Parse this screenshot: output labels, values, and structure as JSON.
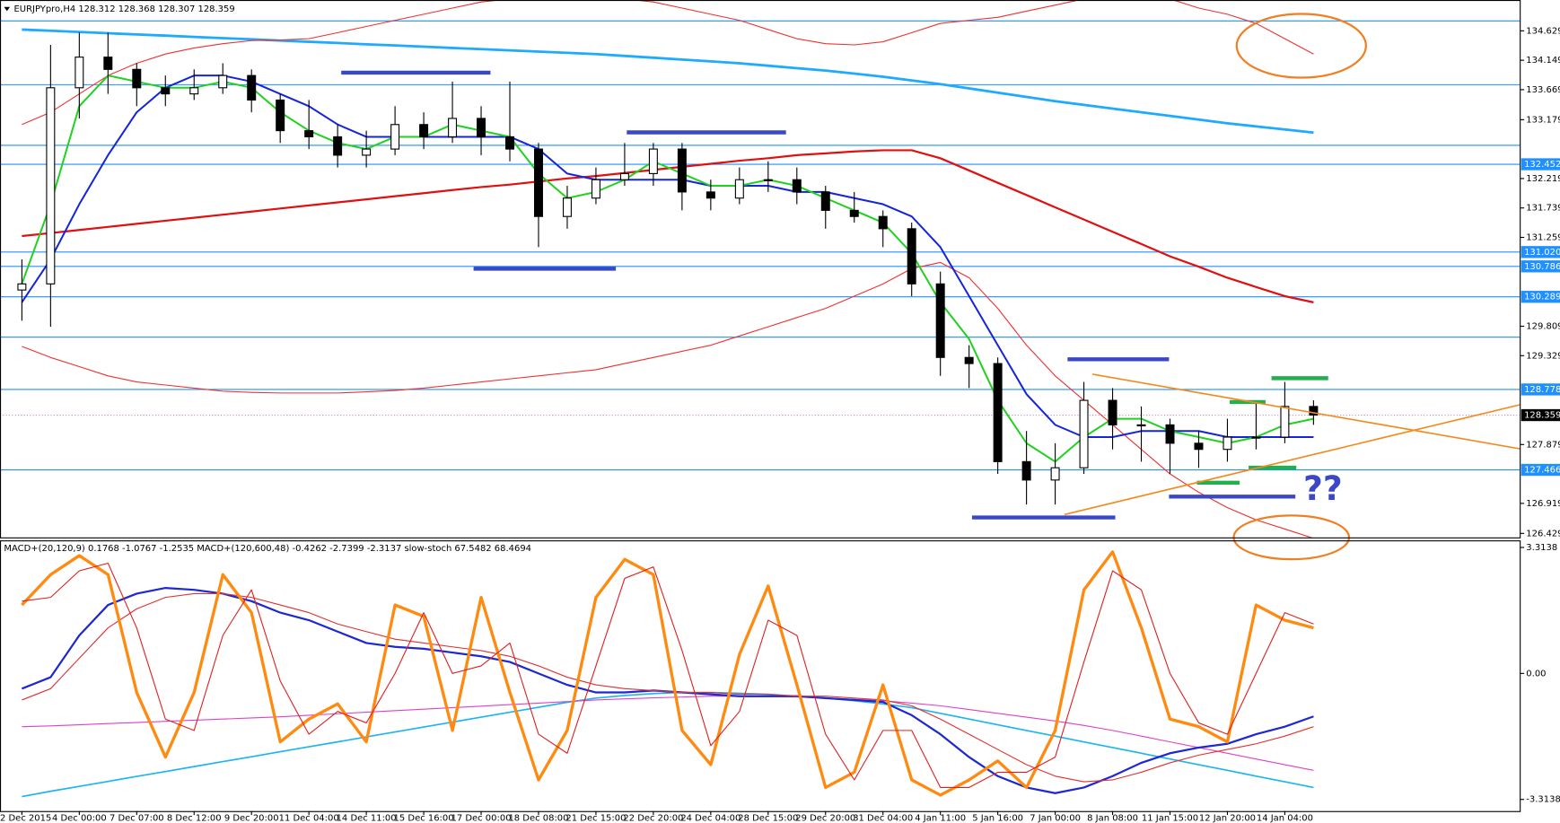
{
  "chart_data": [
    {
      "type": "candlestick",
      "title": "EURJPYpro,H4  128.312 128.368 128.307 128.359",
      "categories": [
        "2 Dec 2015",
        null,
        "4 Dec 00:00",
        null,
        "7 Dec 07:00",
        null,
        "8 Dec 12:00",
        null,
        "9 Dec 20:00",
        null,
        "11 Dec 04:00",
        null,
        "14 Dec 11:00",
        null,
        "15 Dec 16:00",
        null,
        "17 Dec 00:00",
        null,
        "18 Dec 08:00",
        null,
        "21 Dec 15:00",
        null,
        "22 Dec 20:00",
        null,
        "24 Dec 04:00",
        null,
        "28 Dec 15:00",
        null,
        "29 Dec 20:00",
        null,
        "31 Dec 04:00",
        null,
        "4 Jan 11:00",
        null,
        "5 Jan 16:00",
        null,
        "7 Jan 00:00",
        null,
        "8 Jan 08:00",
        null,
        "11 Jan 15:00",
        null,
        "12 Jan 20:00",
        null,
        "14 Jan 04:00",
        null
      ],
      "open": [
        130.4,
        130.5,
        133.7,
        134.2,
        134.0,
        133.7,
        133.6,
        133.7,
        133.9,
        133.5,
        133.0,
        132.9,
        132.6,
        132.7,
        133.1,
        132.9,
        133.2,
        132.9,
        132.7,
        131.6,
        131.9,
        132.2,
        132.3,
        132.7,
        132.0,
        131.9,
        132.2,
        132.2,
        132.0,
        131.7,
        131.6,
        131.4,
        130.5,
        129.3,
        129.2,
        127.6,
        127.3,
        127.5,
        128.6,
        128.2,
        128.2,
        127.9,
        127.8,
        128.0,
        128.0,
        128.5
      ],
      "high": [
        130.9,
        134.4,
        134.6,
        134.6,
        134.1,
        133.9,
        134.0,
        134.1,
        134.0,
        133.6,
        133.5,
        133.1,
        133.0,
        133.4,
        133.3,
        133.8,
        133.4,
        133.8,
        132.8,
        132.1,
        132.4,
        132.8,
        132.8,
        132.8,
        132.2,
        132.4,
        132.5,
        132.4,
        132.1,
        132.0,
        131.7,
        131.5,
        130.7,
        129.5,
        129.3,
        128.1,
        127.9,
        128.9,
        128.8,
        128.5,
        128.3,
        128.1,
        128.3,
        128.6,
        128.9,
        128.6
      ],
      "low": [
        129.9,
        129.8,
        133.2,
        133.6,
        133.4,
        133.4,
        133.5,
        133.6,
        133.3,
        132.8,
        132.7,
        132.4,
        132.4,
        132.6,
        132.7,
        132.8,
        132.6,
        132.5,
        131.1,
        131.4,
        131.8,
        132.1,
        132.1,
        131.7,
        131.7,
        131.8,
        132.0,
        131.8,
        131.4,
        131.5,
        131.1,
        130.3,
        129.0,
        128.8,
        127.4,
        126.9,
        126.9,
        127.4,
        127.8,
        127.6,
        127.4,
        127.5,
        127.6,
        127.8,
        127.9,
        128.2
      ],
      "close": [
        130.5,
        133.7,
        134.2,
        134.0,
        133.7,
        133.6,
        133.7,
        133.9,
        133.5,
        133.0,
        132.9,
        132.6,
        132.7,
        133.1,
        132.9,
        133.2,
        132.9,
        132.7,
        131.6,
        131.9,
        132.2,
        132.3,
        132.7,
        132.0,
        131.9,
        132.2,
        132.2,
        132.0,
        131.7,
        131.6,
        131.4,
        130.5,
        129.3,
        129.2,
        127.6,
        127.3,
        127.5,
        128.6,
        128.2,
        128.2,
        127.9,
        127.8,
        128.0,
        128.0,
        128.5,
        128.36
      ],
      "series": [
        {
          "color": "#1eaaff",
          "values": [
            134.65,
            134.63,
            134.61,
            134.59,
            134.57,
            134.55,
            134.53,
            134.51,
            134.49,
            134.47,
            134.45,
            134.43,
            134.41,
            134.39,
            134.37,
            134.35,
            134.33,
            134.31,
            134.29,
            134.27,
            134.25,
            134.22,
            134.19,
            134.16,
            134.13,
            134.1,
            134.06,
            134.02,
            133.98,
            133.93,
            133.88,
            133.82,
            133.76,
            133.69,
            133.62,
            133.55,
            133.48,
            133.42,
            133.36,
            133.3,
            133.24,
            133.18,
            133.12,
            133.07,
            133.02,
            132.97
          ]
        },
        {
          "color": "#e01010",
          "values": [
            131.28,
            131.33,
            131.38,
            131.43,
            131.48,
            131.53,
            131.58,
            131.63,
            131.68,
            131.73,
            131.78,
            131.83,
            131.88,
            131.93,
            131.98,
            132.03,
            132.08,
            132.12,
            132.17,
            132.22,
            132.26,
            132.31,
            132.36,
            132.41,
            132.46,
            132.51,
            132.55,
            132.6,
            132.63,
            132.66,
            132.68,
            132.68,
            132.55,
            132.35,
            132.15,
            131.95,
            131.75,
            131.55,
            131.35,
            131.15,
            130.95,
            130.78,
            130.6,
            130.45,
            130.3,
            130.2
          ]
        },
        {
          "color": "#ee3030",
          "values": [
            133.1,
            133.3,
            133.6,
            133.9,
            134.1,
            134.25,
            134.35,
            134.42,
            134.47,
            134.48,
            134.5,
            134.6,
            134.7,
            134.8,
            134.9,
            135.0,
            135.1,
            135.15,
            135.2,
            135.2,
            135.2,
            135.15,
            135.1,
            135.0,
            134.9,
            134.8,
            134.65,
            134.5,
            134.42,
            134.4,
            134.45,
            134.6,
            134.75,
            134.8,
            134.85,
            134.95,
            135.05,
            135.15,
            135.2,
            135.2,
            135.15,
            135.0,
            134.9,
            134.75,
            134.5,
            134.25
          ]
        },
        {
          "color": "#ee3030",
          "values": [
            129.48,
            129.3,
            129.15,
            129.0,
            128.9,
            128.85,
            128.8,
            128.75,
            128.73,
            128.72,
            128.72,
            128.72,
            128.74,
            128.76,
            128.8,
            128.85,
            128.9,
            128.95,
            129.0,
            129.05,
            129.1,
            129.2,
            129.3,
            129.4,
            129.5,
            129.65,
            129.8,
            129.95,
            130.1,
            130.3,
            130.5,
            130.75,
            130.85,
            130.6,
            130.1,
            129.5,
            129.0,
            128.6,
            128.2,
            127.8,
            127.4,
            127.1,
            126.85,
            126.65,
            126.5,
            126.35
          ]
        },
        {
          "color": "#1424dc",
          "values": [
            130.2,
            130.9,
            131.8,
            132.6,
            133.3,
            133.7,
            133.9,
            133.9,
            133.8,
            133.6,
            133.4,
            133.1,
            132.9,
            132.9,
            132.9,
            132.9,
            132.9,
            132.9,
            132.7,
            132.3,
            132.2,
            132.2,
            132.2,
            132.2,
            132.1,
            132.1,
            132.1,
            132.0,
            132.0,
            131.9,
            131.8,
            131.6,
            131.1,
            130.3,
            129.5,
            128.7,
            128.2,
            128.0,
            128.0,
            128.1,
            128.1,
            128.1,
            128.0,
            128.0,
            128.0,
            128.0
          ]
        },
        {
          "color": "#1ed21e",
          "values": [
            130.5,
            131.8,
            133.4,
            133.9,
            133.8,
            133.7,
            133.7,
            133.8,
            133.7,
            133.3,
            133.0,
            132.8,
            132.7,
            132.9,
            132.9,
            133.1,
            133.0,
            132.9,
            132.3,
            131.9,
            132.0,
            132.2,
            132.5,
            132.3,
            132.1,
            132.1,
            132.2,
            132.1,
            131.9,
            131.7,
            131.5,
            131.0,
            130.2,
            129.6,
            128.6,
            127.9,
            127.6,
            128.0,
            128.3,
            128.3,
            128.1,
            128.0,
            127.9,
            128.0,
            128.2,
            128.3
          ]
        }
      ],
      "level_color": "#1e90ff",
      "levels": [
        134.79,
        133.75,
        132.76,
        129.63
      ],
      "marked_levels": [
        132.452,
        {
          "value": 131.02,
          "label": "131.020"
        },
        130.786,
        130.289,
        128.778,
        127.466
      ],
      "last_price": 128.359,
      "ylim": [
        126.364,
        135.132
      ],
      "yticks": [
        134.629,
        134.149,
        133.669,
        133.179,
        132.219,
        131.739,
        131.259,
        129.809,
        129.329,
        127.879,
        126.919,
        126.429
      ],
      "annotations": [
        "??"
      ]
    },
    {
      "type": "line",
      "title": "MACD+(20,120,9) 0.1768 -1.0767 -1.2535  MACD+(120,600,48) -0.4262 -2.7399 -2.3137  slow-stoch 67.5482 68.4694",
      "series": [
        {
          "color": "#1eb4f0",
          "values": [
            -3.24,
            -3.1,
            -2.97,
            -2.84,
            -2.71,
            -2.58,
            -2.45,
            -2.32,
            -2.19,
            -2.06,
            -1.93,
            -1.8,
            -1.67,
            -1.54,
            -1.41,
            -1.28,
            -1.15,
            -1.02,
            -0.89,
            -0.76,
            -0.65,
            -0.58,
            -0.53,
            -0.5,
            -0.5,
            -0.52,
            -0.55,
            -0.6,
            -0.65,
            -0.72,
            -0.8,
            -0.9,
            -1.05,
            -1.2,
            -1.35,
            -1.5,
            -1.65,
            -1.8,
            -1.95,
            -2.1,
            -2.25,
            -2.4,
            -2.55,
            -2.7,
            -2.85,
            -3.0
          ]
        },
        {
          "color": "#e040c8",
          "values": [
            -1.4,
            -1.38,
            -1.35,
            -1.32,
            -1.29,
            -1.26,
            -1.23,
            -1.2,
            -1.17,
            -1.14,
            -1.1,
            -1.06,
            -1.02,
            -0.98,
            -0.94,
            -0.9,
            -0.86,
            -0.82,
            -0.78,
            -0.74,
            -0.7,
            -0.67,
            -0.64,
            -0.62,
            -0.6,
            -0.6,
            -0.6,
            -0.62,
            -0.65,
            -0.68,
            -0.72,
            -0.78,
            -0.85,
            -0.95,
            -1.05,
            -1.15,
            -1.25,
            -1.37,
            -1.5,
            -1.65,
            -1.8,
            -1.95,
            -2.1,
            -2.25,
            -2.4,
            -2.55
          ]
        },
        {
          "color": "#1e28d0",
          "values": [
            -0.4,
            -0.1,
            1.0,
            1.8,
            2.1,
            2.25,
            2.2,
            2.1,
            1.9,
            1.6,
            1.4,
            1.1,
            0.8,
            0.7,
            0.65,
            0.55,
            0.45,
            0.3,
            0.0,
            -0.3,
            -0.5,
            -0.5,
            -0.45,
            -0.5,
            -0.55,
            -0.6,
            -0.6,
            -0.6,
            -0.65,
            -0.7,
            -0.75,
            -1.1,
            -1.6,
            -2.2,
            -2.7,
            -3.0,
            -3.15,
            -3.0,
            -2.7,
            -2.35,
            -2.1,
            -1.95,
            -1.85,
            -1.6,
            -1.4,
            -1.13
          ]
        },
        {
          "color": "#e03030",
          "values": [
            -0.7,
            -0.4,
            0.4,
            1.2,
            1.7,
            2.0,
            2.1,
            2.1,
            2.0,
            1.8,
            1.6,
            1.3,
            1.1,
            0.9,
            0.8,
            0.7,
            0.6,
            0.45,
            0.2,
            -0.1,
            -0.3,
            -0.4,
            -0.45,
            -0.5,
            -0.5,
            -0.55,
            -0.55,
            -0.6,
            -0.6,
            -0.65,
            -0.7,
            -0.85,
            -1.2,
            -1.6,
            -2.0,
            -2.4,
            -2.7,
            -2.85,
            -2.8,
            -2.6,
            -2.35,
            -2.15,
            -2.0,
            -1.85,
            -1.65,
            -1.4
          ]
        },
        {
          "color": "#ff8a10",
          "values": [
            1.8,
            2.6,
            3.1,
            2.6,
            -0.5,
            -2.2,
            -0.5,
            2.6,
            1.6,
            -1.8,
            -1.2,
            -0.8,
            -1.8,
            1.8,
            1.5,
            -1.5,
            2.0,
            -0.5,
            -2.8,
            -1.5,
            2.0,
            3.0,
            2.6,
            -1.5,
            -2.4,
            0.5,
            2.3,
            -0.3,
            -3.0,
            -2.6,
            -0.3,
            -2.8,
            -3.2,
            -2.8,
            -2.3,
            -3.0,
            -1.5,
            2.2,
            3.2,
            1.2,
            -1.2,
            -1.4,
            -1.8,
            1.8,
            1.4,
            1.2
          ]
        },
        {
          "color": "#e02020",
          "values": [
            1.9,
            2.0,
            2.7,
            2.9,
            1.2,
            -1.2,
            -1.5,
            1.0,
            2.2,
            -0.2,
            -1.6,
            -1.0,
            -1.3,
            0.0,
            1.6,
            0.0,
            0.2,
            0.8,
            -1.6,
            -2.1,
            0.2,
            2.5,
            2.8,
            0.6,
            -1.9,
            -1.0,
            1.4,
            1.0,
            -1.6,
            -2.8,
            -1.5,
            -1.5,
            -3.0,
            -3.0,
            -2.6,
            -2.6,
            -2.2,
            0.3,
            2.7,
            2.2,
            0.0,
            -1.3,
            -1.6,
            0.0,
            1.6,
            1.3
          ]
        }
      ],
      "ylim": [
        -3.62,
        3.5
      ],
      "yticks": [
        3.3138,
        {
          "value": 0,
          "label": "0.00"
        },
        -3.3138
      ]
    }
  ]
}
